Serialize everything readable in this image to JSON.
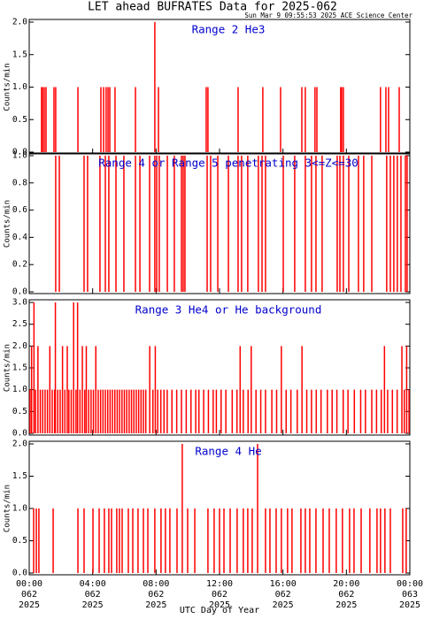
{
  "title": "LET ahead BUFRATES Data for 2025-062",
  "subtitle": "Sun Mar  9 09:55:53 2025 ACE Science Center",
  "x_label": "UTC Day of Year",
  "axis": {
    "xlim": [
      0,
      24
    ],
    "xticks": [
      {
        "value": 0,
        "label": "00:00"
      },
      {
        "value": 4,
        "label": "04:00"
      },
      {
        "value": 8,
        "label": "08:00"
      },
      {
        "value": 12,
        "label": "12:00"
      },
      {
        "value": 16,
        "label": "16:00"
      },
      {
        "value": 20,
        "label": "20:00"
      },
      {
        "value": 24,
        "label": "00:00"
      }
    ],
    "xtick_days": [
      "062",
      "062",
      "062",
      "062",
      "062",
      "062",
      "063"
    ],
    "xtick_years": [
      "2025",
      "2025",
      "2025",
      "2025",
      "2025",
      "2025",
      "2025"
    ]
  },
  "chart_data": [
    {
      "type": "bar",
      "title": "Range 2 He3",
      "y_label": "Counts/min",
      "color": "#ff0000",
      "title_color": "#0000cc",
      "ylim": [
        0,
        2
      ],
      "yticks": [
        {
          "value": 0,
          "label": "0.0"
        },
        {
          "value": 0.5,
          "label": "0.5"
        },
        {
          "value": 1,
          "label": "1.0"
        },
        {
          "value": 1.5,
          "label": "1.5"
        },
        {
          "value": 2,
          "label": "2.0"
        }
      ],
      "x": [
        0.78,
        0.84,
        0.95,
        1.06,
        1.56,
        1.67,
        3.07,
        4.52,
        4.69,
        4.85,
        4.97,
        5.08,
        5.41,
        6.7,
        7.92,
        8.15,
        11.16,
        11.27,
        13.17,
        14.73,
        15.85,
        17.19,
        17.41,
        18.02,
        18.14,
        19.64,
        19.7,
        19.81,
        22.15,
        22.49,
        22.66,
        23.33
      ],
      "values": [
        1,
        1,
        1,
        1,
        1,
        1,
        1,
        1,
        1,
        1,
        1,
        1,
        1,
        1,
        2,
        1,
        1,
        1,
        1,
        1,
        1,
        1,
        1,
        1,
        1,
        1,
        1,
        1,
        1,
        1,
        1,
        1
      ]
    },
    {
      "type": "bar",
      "title": "Range 4 or Range 5 penetrating 3<=Z<=30",
      "y_label": "Counts/min",
      "color": "#ff0000",
      "title_color": "#0000cc",
      "ylim": [
        0,
        1
      ],
      "yticks": [
        {
          "value": 0,
          "label": "0.0"
        },
        {
          "value": 0.2,
          "label": "0.2"
        },
        {
          "value": 0.4,
          "label": "0.4"
        },
        {
          "value": 0.6,
          "label": "0.6"
        },
        {
          "value": 0.8,
          "label": "0.8"
        },
        {
          "value": 1,
          "label": "1.0"
        }
      ],
      "x": [
        1.67,
        1.9,
        3.46,
        3.68,
        4.46,
        4.8,
        5.02,
        5.47,
        5.97,
        6.7,
        6.98,
        7.59,
        7.92,
        8.04,
        8.2,
        8.71,
        9.15,
        9.6,
        9.71,
        9.82,
        11.22,
        11.44,
        11.89,
        12.56,
        13.17,
        13.39,
        13.78,
        14.45,
        14.68,
        14.9,
        16.02,
        16.74,
        17.41,
        17.8,
        18.08,
        18.47,
        19.42,
        19.59,
        19.81,
        20.15,
        20.76,
        21.09,
        21.6,
        22.54,
        22.77,
        22.99,
        23.21,
        23.44,
        23.72,
        23.83
      ],
      "values": [
        1,
        1,
        1,
        1,
        1,
        1,
        1,
        1,
        1,
        1,
        1,
        1,
        1,
        1,
        1,
        1,
        1,
        1,
        1,
        1,
        1,
        1,
        1,
        1,
        1,
        1,
        1,
        1,
        1,
        1,
        1,
        1,
        1,
        1,
        1,
        1,
        1,
        1,
        1,
        1,
        1,
        1,
        1,
        1,
        1,
        1,
        1,
        1,
        1,
        1
      ]
    },
    {
      "type": "bar",
      "title": "Range 3 He4 or He background",
      "y_label": "Counts/min",
      "color": "#ff0000",
      "title_color": "#0000cc",
      "ylim": [
        0,
        3
      ],
      "yticks": [
        {
          "value": 0,
          "label": "0.0"
        },
        {
          "value": 0.5,
          "label": "0.5"
        },
        {
          "value": 1,
          "label": "1.0"
        },
        {
          "value": 1.5,
          "label": "1.5"
        },
        {
          "value": 2,
          "label": "2.0"
        },
        {
          "value": 2.5,
          "label": "2.5"
        },
        {
          "value": 3,
          "label": "3.0"
        }
      ],
      "x": [
        0.05,
        0.15,
        0.3,
        0.4,
        0.55,
        0.7,
        0.85,
        1.0,
        1.15,
        1.3,
        1.45,
        1.6,
        1.65,
        1.8,
        1.95,
        2.1,
        2.25,
        2.4,
        2.5,
        2.65,
        2.8,
        2.95,
        3.05,
        3.2,
        3.35,
        3.5,
        3.6,
        3.75,
        3.9,
        4.05,
        4.2,
        4.35,
        4.5,
        4.65,
        4.8,
        4.95,
        5.1,
        5.25,
        5.4,
        5.55,
        5.7,
        5.85,
        6.0,
        6.15,
        6.3,
        6.45,
        6.6,
        6.75,
        6.9,
        7.05,
        7.2,
        7.35,
        7.6,
        7.8,
        7.95,
        8.1,
        8.3,
        8.5,
        8.7,
        9.0,
        9.3,
        9.6,
        9.9,
        10.2,
        10.5,
        10.7,
        11.0,
        11.3,
        11.6,
        11.8,
        12.1,
        12.4,
        12.8,
        13.1,
        13.3,
        13.5,
        13.8,
        14.0,
        14.3,
        14.6,
        14.9,
        15.3,
        15.6,
        15.9,
        16.2,
        16.5,
        16.9,
        17.2,
        17.5,
        17.8,
        18.1,
        18.4,
        18.8,
        19.1,
        19.4,
        19.8,
        20.1,
        20.5,
        20.9,
        21.2,
        21.6,
        21.9,
        22.2,
        22.4,
        22.6,
        22.9,
        23.2,
        23.5,
        23.65,
        23.8,
        23.95
      ],
      "values": [
        1,
        2,
        3,
        1,
        2,
        1,
        1,
        1,
        1,
        2,
        1,
        1,
        3,
        1,
        1,
        2,
        1,
        2,
        1,
        1,
        3,
        1,
        3,
        1,
        2,
        1,
        2,
        1,
        1,
        1,
        2,
        1,
        1,
        1,
        1,
        1,
        1,
        1,
        1,
        1,
        1,
        1,
        1,
        1,
        1,
        1,
        1,
        1,
        1,
        1,
        1,
        1,
        2,
        1,
        2,
        1,
        1,
        1,
        1,
        1,
        1,
        1,
        1,
        1,
        1,
        1,
        1,
        1,
        1,
        1,
        1,
        1,
        1,
        1,
        2,
        1,
        1,
        2,
        1,
        1,
        1,
        1,
        1,
        2,
        1,
        1,
        1,
        2,
        1,
        1,
        1,
        1,
        1,
        1,
        1,
        1,
        1,
        1,
        1,
        1,
        1,
        1,
        1,
        2,
        1,
        1,
        1,
        2,
        1,
        2,
        1
      ]
    },
    {
      "type": "bar",
      "title": "Range 4 He",
      "y_label": "Counts/min",
      "color": "#ff0000",
      "title_color": "#0000cc",
      "ylim": [
        0,
        2
      ],
      "yticks": [
        {
          "value": 0,
          "label": "0.0"
        },
        {
          "value": 0.5,
          "label": "0.5"
        },
        {
          "value": 1,
          "label": "1.0"
        },
        {
          "value": 1.5,
          "label": "1.5"
        },
        {
          "value": 2,
          "label": "2.0"
        }
      ],
      "x": [
        0.28,
        0.45,
        0.61,
        1.51,
        3.07,
        3.46,
        4.02,
        4.41,
        4.74,
        5.02,
        5.19,
        5.52,
        5.69,
        5.86,
        6.25,
        6.53,
        6.86,
        7.2,
        7.48,
        7.92,
        8.31,
        8.59,
        8.87,
        9.32,
        9.65,
        9.99,
        10.44,
        11.27,
        11.66,
        12.0,
        12.28,
        12.67,
        13.11,
        13.5,
        13.78,
        14.06,
        14.4,
        14.9,
        15.18,
        15.57,
        15.9,
        16.29,
        16.57,
        17.13,
        17.41,
        17.69,
        18.08,
        18.53,
        18.92,
        19.36,
        19.75,
        20.2,
        20.48,
        20.93,
        21.48,
        21.93,
        22.15,
        22.43,
        22.77,
        23.55,
        23.77
      ],
      "values": [
        1,
        1,
        1,
        1,
        1,
        1,
        1,
        1,
        1,
        1,
        1,
        1,
        1,
        1,
        1,
        1,
        1,
        1,
        1,
        1,
        1,
        1,
        1,
        1,
        2,
        1,
        1,
        1,
        1,
        1,
        1,
        1,
        1,
        1,
        1,
        1,
        2,
        1,
        1,
        1,
        1,
        1,
        1,
        1,
        1,
        1,
        1,
        1,
        1,
        1,
        1,
        1,
        1,
        1,
        1,
        1,
        1,
        1,
        1,
        1,
        1
      ]
    }
  ]
}
